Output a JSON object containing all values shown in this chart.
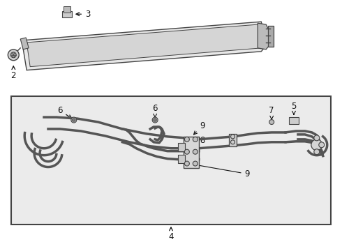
{
  "bg_color": "#ebebeb",
  "border_color": "#444444",
  "line_color": "#444444",
  "label_color": "#111111",
  "fig_bg": "#ffffff",
  "cooler_face": "#e0e0e0",
  "cooler_edge": "#444444"
}
